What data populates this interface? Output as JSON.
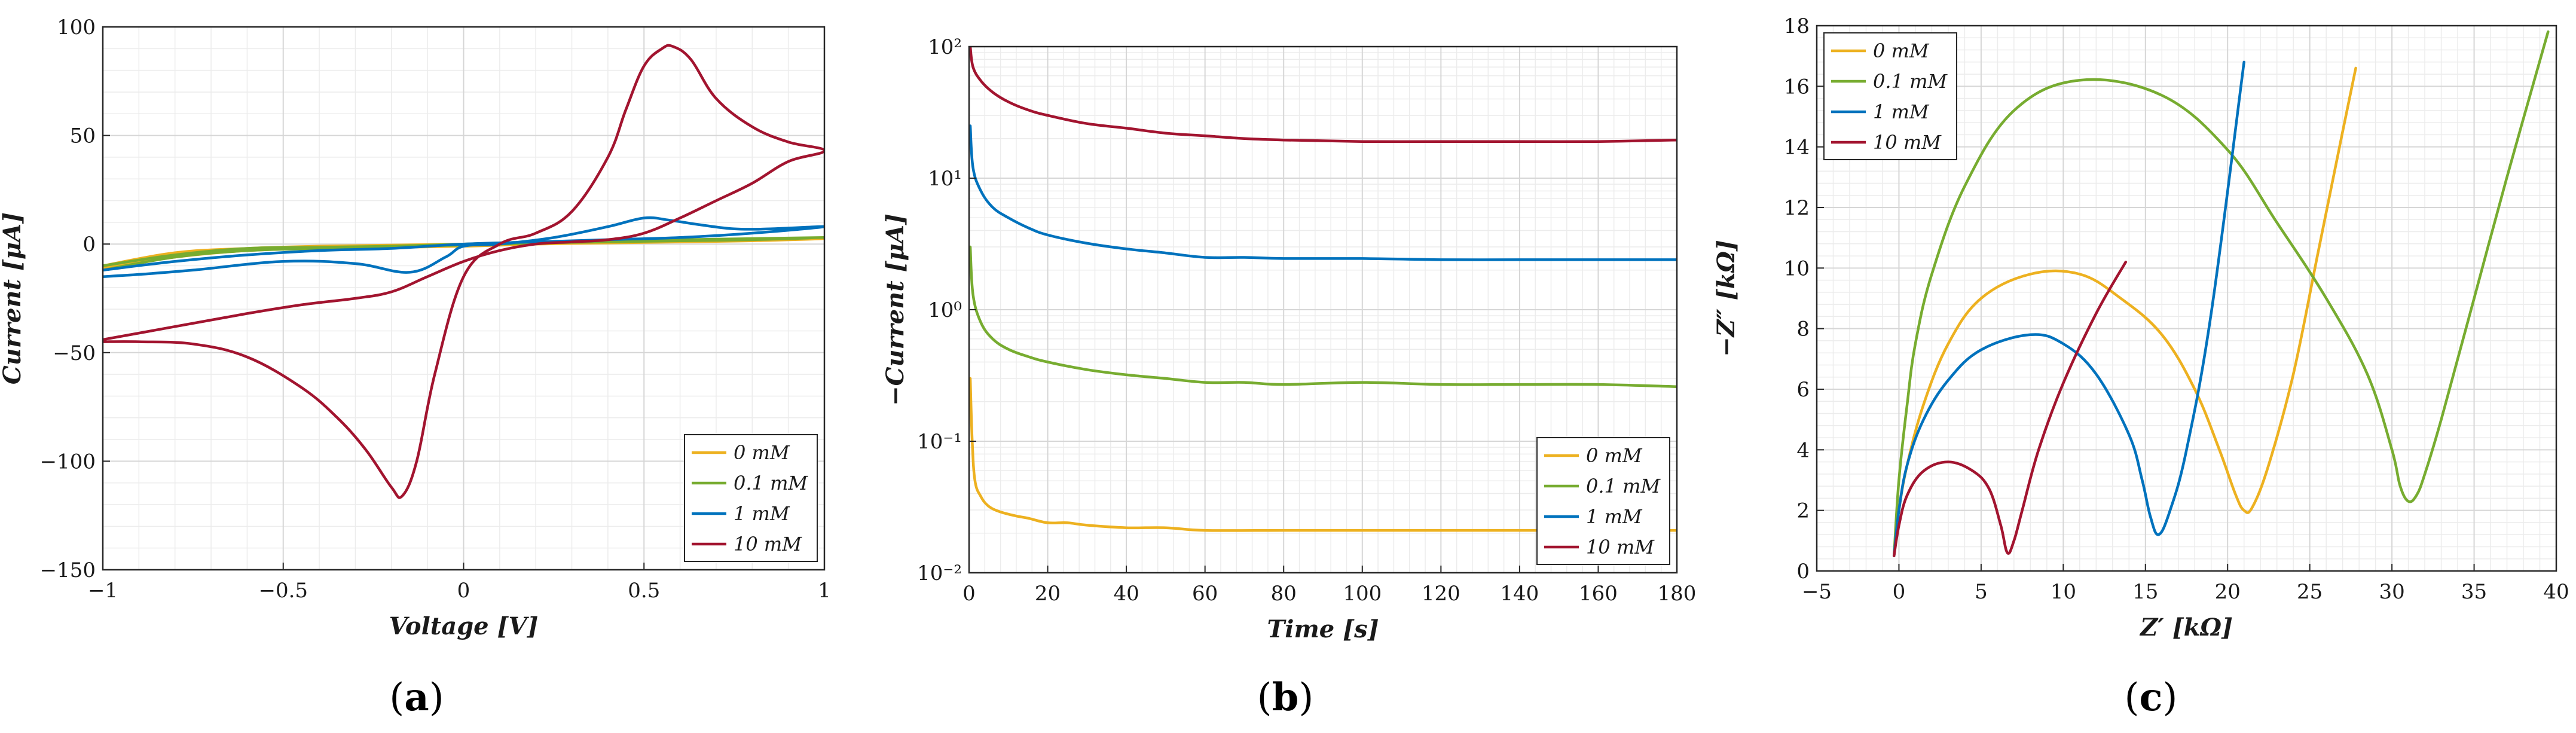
{
  "colors": {
    "0 mM": "#EDB120",
    "0.1 mM": "#77AC30",
    "1 mM": "#0072BD",
    "10 mM": "#A2142F"
  },
  "chart_data": [
    {
      "id": "a",
      "type": "line",
      "panel_label": "a",
      "xlabel": "Voltage [V]",
      "ylabel": "Current [μA]",
      "xlim": [
        -1,
        1
      ],
      "ylim": [
        -150,
        100
      ],
      "xticks": [
        -1,
        -0.5,
        0,
        0.5,
        1
      ],
      "xtick_labels": [
        "−1",
        "−0.5",
        "0",
        "0.5",
        "1"
      ],
      "yticks": [
        -150,
        -100,
        -50,
        0,
        50,
        100
      ],
      "ytick_labels": [
        "−150",
        "−100",
        "−50",
        "0",
        "50",
        "100"
      ],
      "grid": true,
      "legend": "bottom-right",
      "series": [
        {
          "name": "0 mM",
          "x": [
            -1,
            -0.8,
            -0.6,
            -0.4,
            -0.2,
            0,
            0.2,
            0.4,
            0.6,
            0.8,
            1,
            0.8,
            0.6,
            0.4,
            0.2,
            0,
            -0.2,
            -0.4,
            -0.6,
            -0.8,
            -1
          ],
          "y": [
            -11,
            -6,
            -3,
            -2,
            -1.5,
            -1,
            0,
            0.5,
            1,
            1.5,
            2.5,
            2,
            1.5,
            1,
            0.5,
            0,
            -0.5,
            -1,
            -2,
            -4,
            -10
          ]
        },
        {
          "name": "0.1 mM",
          "x": [
            -1,
            -0.8,
            -0.6,
            -0.4,
            -0.2,
            0,
            0.2,
            0.4,
            0.6,
            0.8,
            1,
            0.8,
            0.6,
            0.4,
            0.2,
            0,
            -0.2,
            -0.4,
            -0.6,
            -0.8,
            -1
          ],
          "y": [
            -10,
            -5,
            -2,
            -1.5,
            -1,
            -0.5,
            0.5,
            1,
            1.5,
            2,
            3,
            2.5,
            2,
            1.5,
            1,
            0,
            -1,
            -2,
            -3,
            -6,
            -12
          ]
        },
        {
          "name": "1 mM",
          "x": [
            -1,
            -0.9,
            -0.75,
            -0.5,
            -0.3,
            -0.15,
            -0.05,
            0,
            0.1,
            0.25,
            0.4,
            0.5,
            0.57,
            0.65,
            0.75,
            0.85,
            1,
            0.8,
            0.6,
            0.4,
            0.2,
            0,
            -0.2,
            -0.4,
            -0.6,
            -0.8,
            -1
          ],
          "y": [
            -15,
            -14,
            -12,
            -8,
            -9,
            -13,
            -6,
            -1,
            0,
            3,
            8,
            12,
            11,
            9,
            7,
            7,
            8,
            5,
            3,
            2,
            1,
            0,
            -2,
            -3,
            -5,
            -8,
            -12
          ]
        },
        {
          "name": "10 mM",
          "x": [
            -1,
            -0.9,
            -0.75,
            -0.6,
            -0.45,
            -0.35,
            -0.27,
            -0.2,
            -0.17,
            -0.13,
            -0.08,
            0,
            0.1,
            0.2,
            0.3,
            0.4,
            0.45,
            0.5,
            0.55,
            0.58,
            0.63,
            0.7,
            0.8,
            0.9,
            1,
            0.9,
            0.8,
            0.7,
            0.6,
            0.5,
            0.4,
            0.3,
            0.2,
            0.1,
            0,
            -0.1,
            -0.2,
            -0.3,
            -0.45,
            -0.6,
            -0.8,
            -1
          ],
          "y": [
            -45,
            -45,
            -46,
            -52,
            -66,
            -80,
            -95,
            -112,
            -116,
            -100,
            -60,
            -15,
            0,
            5,
            15,
            40,
            62,
            82,
            90,
            91,
            85,
            67,
            54,
            47,
            43,
            38,
            28,
            20,
            12,
            5,
            2,
            1,
            0,
            -3,
            -8,
            -15,
            -22,
            -25,
            -28,
            -32,
            -38,
            -44
          ]
        }
      ]
    },
    {
      "id": "b",
      "type": "line",
      "panel_label": "b",
      "yscale": "log",
      "xlabel": "Time [s]",
      "ylabel": "−Current [μA]",
      "xlim": [
        0,
        180
      ],
      "ylim": [
        0.01,
        100
      ],
      "xticks": [
        0,
        20,
        40,
        60,
        80,
        100,
        120,
        140,
        160,
        180
      ],
      "xtick_labels": [
        "0",
        "20",
        "40",
        "60",
        "80",
        "100",
        "120",
        "140",
        "160",
        "180"
      ],
      "yticks": [
        0.01,
        0.1,
        1,
        10,
        100
      ],
      "ytick_labels": [
        "10⁻²",
        "10⁻¹",
        "10⁰",
        "10¹",
        "10²"
      ],
      "grid": true,
      "legend": "bottom-right",
      "series": [
        {
          "name": "0 mM",
          "x": [
            0.3,
            0.8,
            1.5,
            3,
            5,
            8,
            12,
            15,
            20,
            25,
            30,
            40,
            50,
            60,
            80,
            100,
            120,
            140,
            160,
            180
          ],
          "y": [
            0.3,
            0.1,
            0.05,
            0.038,
            0.032,
            0.029,
            0.027,
            0.026,
            0.024,
            0.024,
            0.023,
            0.022,
            0.022,
            0.021,
            0.021,
            0.021,
            0.021,
            0.021,
            0.021,
            0.021
          ]
        },
        {
          "name": "0.1 mM",
          "x": [
            0.3,
            1,
            3,
            6,
            10,
            15,
            20,
            30,
            40,
            50,
            60,
            70,
            80,
            100,
            120,
            140,
            160,
            180
          ],
          "y": [
            3,
            1.3,
            0.8,
            0.6,
            0.5,
            0.44,
            0.4,
            0.35,
            0.32,
            0.3,
            0.28,
            0.28,
            0.27,
            0.28,
            0.27,
            0.27,
            0.27,
            0.26
          ]
        },
        {
          "name": "1 mM",
          "x": [
            0.3,
            1,
            3,
            6,
            10,
            15,
            20,
            30,
            40,
            50,
            60,
            70,
            80,
            100,
            120,
            140,
            160,
            180
          ],
          "y": [
            25,
            12,
            8,
            6,
            5,
            4.2,
            3.7,
            3.2,
            2.9,
            2.7,
            2.5,
            2.5,
            2.45,
            2.45,
            2.4,
            2.4,
            2.4,
            2.4
          ]
        },
        {
          "name": "10 mM",
          "x": [
            0.3,
            1,
            3,
            6,
            10,
            15,
            20,
            30,
            40,
            50,
            60,
            70,
            80,
            100,
            120,
            140,
            160,
            180
          ],
          "y": [
            100,
            70,
            55,
            45,
            38,
            33,
            30,
            26,
            24,
            22,
            21,
            20,
            19.5,
            19,
            19,
            19,
            19,
            19.5
          ]
        }
      ]
    },
    {
      "id": "c",
      "type": "line",
      "panel_label": "c",
      "xlabel": "Z′ [kΩ]",
      "ylabel": "−Z″ [kΩ]",
      "xlim": [
        -5,
        40
      ],
      "ylim": [
        0,
        18
      ],
      "xticks": [
        -5,
        0,
        5,
        10,
        15,
        20,
        25,
        30,
        35,
        40
      ],
      "xtick_labels": [
        "−5",
        "0",
        "5",
        "10",
        "15",
        "20",
        "25",
        "30",
        "35",
        "40"
      ],
      "yticks": [
        0,
        2,
        4,
        6,
        8,
        10,
        12,
        14,
        16,
        18
      ],
      "ytick_labels": [
        "0",
        "2",
        "4",
        "6",
        "8",
        "10",
        "12",
        "14",
        "16",
        "18"
      ],
      "grid": true,
      "legend": "top-left",
      "series": [
        {
          "name": "0 mM",
          "x": [
            -0.3,
            0,
            0.5,
            1.5,
            3,
            5,
            8,
            11,
            13.5,
            16,
            18,
            19.5,
            20.5,
            21,
            21.5,
            22.5,
            24,
            25.5,
            27,
            27.8
          ],
          "y": [
            0.5,
            2,
            3.5,
            5.5,
            7.5,
            9,
            9.8,
            9.8,
            9,
            7.8,
            6,
            4,
            2.5,
            2,
            2.1,
            3.5,
            6.5,
            10.5,
            14.5,
            16.6
          ]
        },
        {
          "name": "0.1 mM",
          "x": [
            -0.3,
            0,
            0.5,
            1,
            2,
            4,
            7,
            11,
            16,
            20,
            23,
            26,
            28.5,
            30,
            30.5,
            31,
            31.5,
            32,
            33,
            35,
            37,
            39.5
          ],
          "y": [
            0.5,
            3,
            5.5,
            7.5,
            9.8,
            12.7,
            15.2,
            16.2,
            15.7,
            13.9,
            11.5,
            9,
            6.5,
            4,
            2.8,
            2.3,
            2.5,
            3.2,
            5,
            9,
            13,
            17.8
          ]
        },
        {
          "name": "1 mM",
          "x": [
            -0.3,
            0,
            0.5,
            1.5,
            3,
            5,
            8,
            10,
            12,
            14,
            14.8,
            15.3,
            15.8,
            16.5,
            17.5,
            19,
            21
          ],
          "y": [
            0.5,
            2,
            3.5,
            5,
            6.3,
            7.3,
            7.8,
            7.5,
            6.5,
            4.5,
            3,
            1.8,
            1.2,
            2,
            4,
            8.5,
            16.8
          ]
        },
        {
          "name": "10 mM",
          "x": [
            -0.3,
            0,
            0.5,
            1.5,
            3,
            4.5,
            5.5,
            6.2,
            6.6,
            7,
            7.5,
            8.5,
            10,
            12,
            13.8
          ],
          "y": [
            0.5,
            1.5,
            2.5,
            3.3,
            3.6,
            3.3,
            2.7,
            1.5,
            0.6,
            1,
            2,
            4,
            6.2,
            8.5,
            10.2
          ]
        }
      ]
    }
  ]
}
